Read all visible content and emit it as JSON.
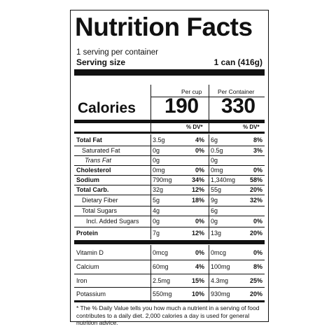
{
  "title": "Nutrition Facts",
  "servings_per_container": "1 serving per container",
  "serving_size_label": "Serving size",
  "serving_size_value": "1 can (416g)",
  "per_cup_label": "Per cup",
  "per_container_label": "Per Container",
  "calories_label": "Calories",
  "calories_per_cup": "190",
  "calories_per_container": "330",
  "dv_header": "% DV*",
  "nutrients": [
    {
      "name": "Total Fat",
      "cup_amt": "3.5g",
      "cup_dv": "4%",
      "cont_amt": "6g",
      "cont_dv": "8%"
    },
    {
      "name": "Saturated Fat",
      "cup_amt": "0g",
      "cup_dv": "0%",
      "cont_amt": "0.5g",
      "cont_dv": "3%"
    },
    {
      "name": "Trans Fat",
      "cup_amt": "0g",
      "cup_dv": "",
      "cont_amt": "0g",
      "cont_dv": ""
    },
    {
      "name": "Cholesterol",
      "cup_amt": "0mg",
      "cup_dv": "0%",
      "cont_amt": "0mg",
      "cont_dv": "0%"
    },
    {
      "name": "Sodium",
      "cup_amt": "790mg",
      "cup_dv": "34%",
      "cont_amt": "1,340mg",
      "cont_dv": "58%"
    },
    {
      "name": "Total Carb.",
      "cup_amt": "32g",
      "cup_dv": "12%",
      "cont_amt": "55g",
      "cont_dv": "20%"
    },
    {
      "name": "Dietary Fiber",
      "cup_amt": "5g",
      "cup_dv": "18%",
      "cont_amt": "9g",
      "cont_dv": "32%"
    },
    {
      "name": "Total Sugars",
      "cup_amt": "4g",
      "cup_dv": "",
      "cont_amt": "6g",
      "cont_dv": ""
    },
    {
      "name": "Incl. Added Sugars",
      "cup_amt": "0g",
      "cup_dv": "0%",
      "cont_amt": "0g",
      "cont_dv": "0%"
    },
    {
      "name": "Protein",
      "cup_amt": "7g",
      "cup_dv": "12%",
      "cont_amt": "13g",
      "cont_dv": "20%"
    }
  ],
  "vitamins": [
    {
      "name": "Vitamin D",
      "cup_amt": "0mcg",
      "cup_dv": "0%",
      "cont_amt": "0mcg",
      "cont_dv": "0%"
    },
    {
      "name": "Calcium",
      "cup_amt": "60mg",
      "cup_dv": "4%",
      "cont_amt": "100mg",
      "cont_dv": "8%"
    },
    {
      "name": "Iron",
      "cup_amt": "2.5mg",
      "cup_dv": "15%",
      "cont_amt": "4.3mg",
      "cont_dv": "25%"
    },
    {
      "name": "Potassium",
      "cup_amt": "550mg",
      "cup_dv": "10%",
      "cont_amt": "930mg",
      "cont_dv": "20%"
    }
  ],
  "footnote": "* The % Daily Value tells you how much a nutrient in a serving of food contributes to a daily diet. 2,000 calories a day is used for general nutrition advice."
}
